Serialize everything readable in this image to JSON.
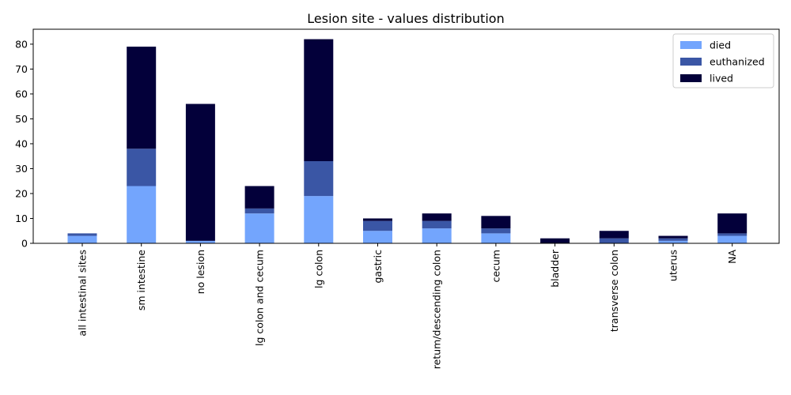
{
  "chart_data": {
    "type": "bar",
    "stacked": true,
    "title": "Lesion site - values distribution",
    "xlabel": "",
    "ylabel": "",
    "categories": [
      "all intestinal sites",
      "sm intestine",
      "no lesion",
      "lg colon and cecum",
      "lg colon",
      "gastric",
      "retum/descending colon",
      "cecum",
      "bladder",
      "transverse colon",
      "uterus",
      "NA"
    ],
    "series": [
      {
        "name": "died",
        "color": "#73a5fd",
        "values": [
          3,
          23,
          1,
          12,
          19,
          5,
          6,
          4,
          0,
          0,
          1,
          3
        ]
      },
      {
        "name": "euthanized",
        "color": "#3a56a5",
        "values": [
          1,
          15,
          0,
          2,
          14,
          4,
          3,
          2,
          0,
          2,
          1,
          1
        ]
      },
      {
        "name": "lived",
        "color": "#03003a",
        "values": [
          0,
          41,
          55,
          9,
          49,
          1,
          3,
          5,
          2,
          3,
          1,
          8
        ]
      }
    ],
    "ylim": [
      0,
      86
    ],
    "yticks": [
      0,
      10,
      20,
      30,
      40,
      50,
      60,
      70,
      80
    ],
    "legend_position": "upper-right",
    "grid": false
  }
}
